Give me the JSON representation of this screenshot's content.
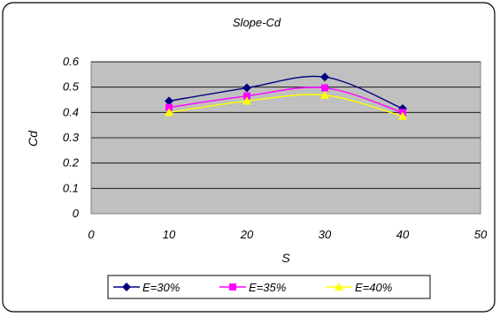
{
  "chart_data": {
    "type": "line",
    "title": "Slope-Cd",
    "xlabel": "S",
    "ylabel": "Cd",
    "xlim": [
      0,
      50
    ],
    "ylim": [
      0,
      0.6
    ],
    "x_ticks": [
      "0",
      "10",
      "20",
      "30",
      "40",
      "50"
    ],
    "y_ticks": [
      "0",
      "0.1",
      "0.2",
      "0.3",
      "0.4",
      "0.5",
      "0.6"
    ],
    "grid": true,
    "legend_position": "bottom",
    "background_color": "#c0c0c0",
    "x": [
      10,
      20,
      30,
      40
    ],
    "series": [
      {
        "name": "E=30%",
        "color": "#000080",
        "marker": "diamond",
        "values": [
          0.445,
          0.497,
          0.54,
          0.415
        ]
      },
      {
        "name": "E=35%",
        "color": "#ff00ff",
        "marker": "square",
        "values": [
          0.42,
          0.465,
          0.497,
          0.4
        ]
      },
      {
        "name": "E=40%",
        "color": "#ffff00",
        "marker": "triangle",
        "values": [
          0.4,
          0.445,
          0.468,
          0.385
        ]
      }
    ]
  }
}
